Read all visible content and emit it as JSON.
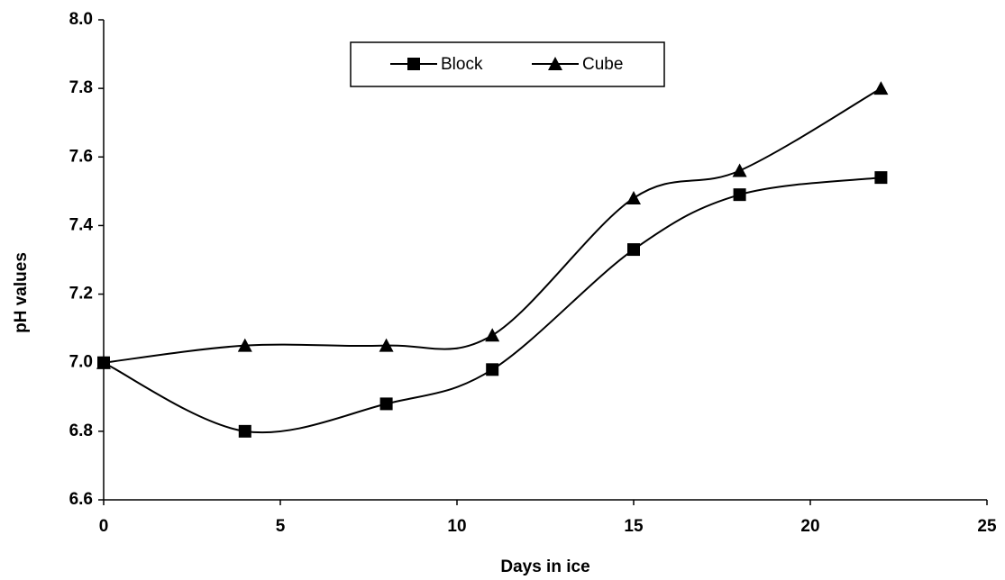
{
  "chart_data": {
    "type": "line",
    "x_label": "Days in ice",
    "y_label": "pH values",
    "x": [
      0,
      4,
      8,
      11,
      15,
      18,
      22
    ],
    "series": [
      {
        "name": "Block",
        "color": "#000000",
        "marker": "square",
        "values": [
          7.0,
          6.8,
          6.88,
          6.98,
          7.33,
          7.49,
          7.54
        ]
      },
      {
        "name": "Cube",
        "color": "#000000",
        "marker": "triangle",
        "values": [
          7.0,
          7.05,
          7.05,
          7.08,
          7.48,
          7.56,
          7.8
        ]
      }
    ],
    "xlim": [
      0,
      25
    ],
    "xticks": [
      0,
      5,
      10,
      15,
      20,
      25
    ],
    "ylim": [
      6.6,
      8
    ],
    "yticks": [
      6.6,
      6.8,
      {
        "value": 7,
        "label": "7.0"
      },
      7.2,
      7.4,
      7.6,
      7.8,
      {
        "value": 8,
        "label": "8.0"
      }
    ],
    "smooth": true,
    "grid": false,
    "legend": "top"
  }
}
